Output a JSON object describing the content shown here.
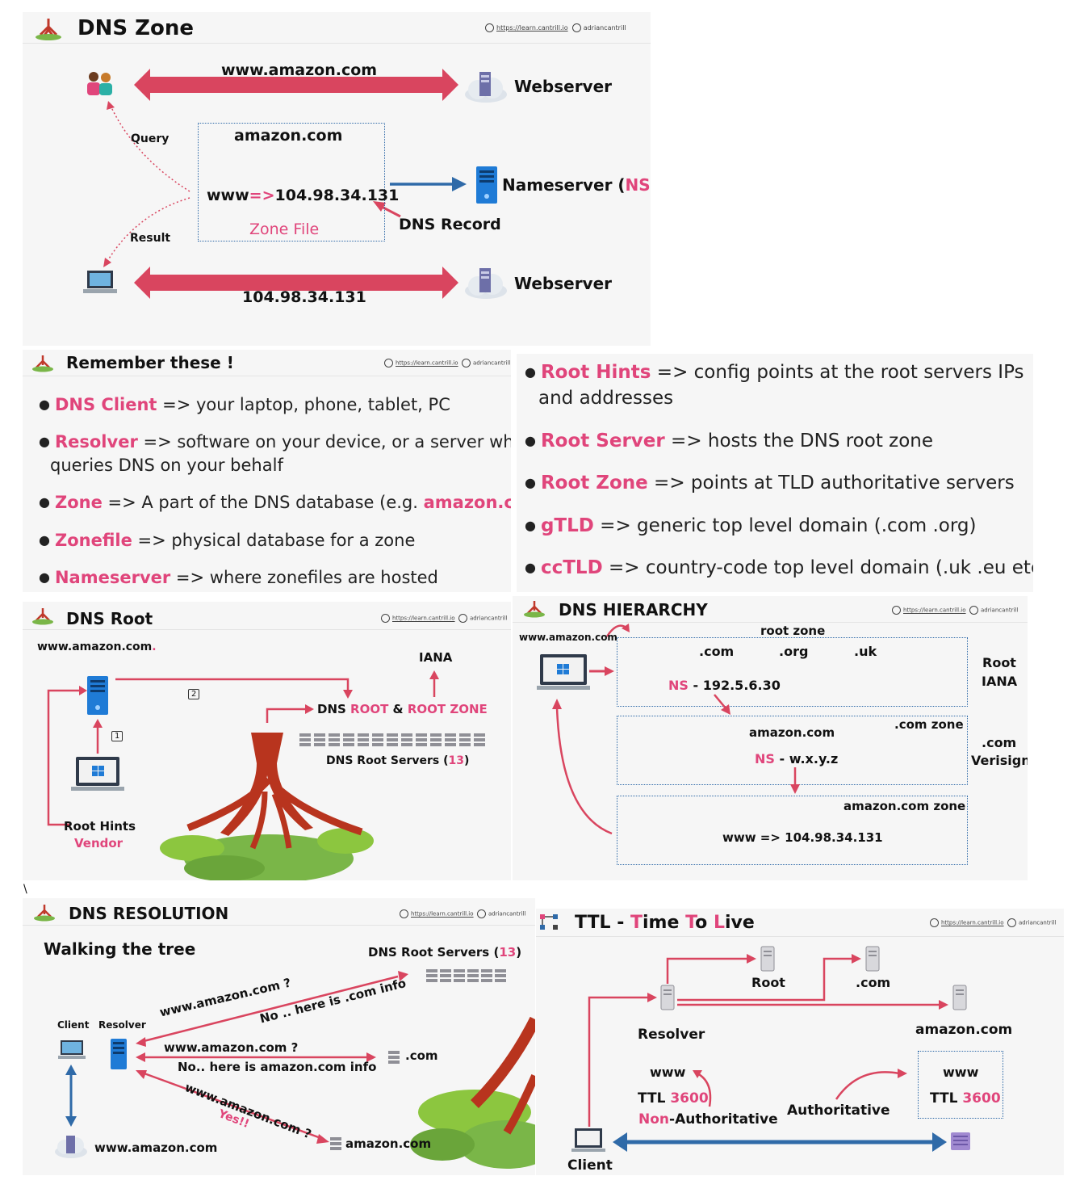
{
  "attribution": {
    "url": "https://learn.cantrill.io",
    "handle": "adriancantrill"
  },
  "dns_zone": {
    "title": "DNS Zone",
    "top_domain": "www.amazon.com",
    "webserver": "Webserver",
    "query": "Query",
    "result": "Result",
    "zone_name": "amazon.com",
    "record_pre": "www",
    "record_arrow": "=>",
    "record_ip": "104.98.34.131",
    "zone_file": "Zone File",
    "nameserver_pre": "Nameserver (",
    "nameserver_ns": "NS",
    "nameserver_post": ")",
    "dns_record": "DNS Record",
    "bottom_ip": "104.98.34.131",
    "webserver2": "Webserver"
  },
  "remember": {
    "title": "Remember these !",
    "left": [
      {
        "key": "DNS Client",
        "text": " => your laptop, phone, tablet, PC"
      },
      {
        "key": "Resolver",
        "text": " => software on your device, or a server which",
        "text2": "queries DNS on your behalf"
      },
      {
        "key": "Zone",
        "text": " => A part of the DNS database (e.g. ",
        "key2": "amazon.com",
        "tail": ")"
      },
      {
        "key": "Zonefile",
        "text": " => physical database for a zone"
      },
      {
        "key": "Nameserver",
        "text": " => where zonefiles are hosted"
      }
    ],
    "right": [
      {
        "key": "Root Hints",
        "text": " => config points at the root servers IPs",
        "text2": "and addresses"
      },
      {
        "key": "Root Server",
        "text": " => hosts the DNS root zone"
      },
      {
        "key": "Root Zone",
        "text": " => points at TLD authoritative servers"
      },
      {
        "key": "gTLD",
        "text": " => generic top level domain (.com .org)"
      },
      {
        "key": "ccTLD",
        "text": " => country-code top level domain (.uk .eu etc)"
      }
    ]
  },
  "dns_root": {
    "title": "DNS Root",
    "domain": "www.amazon.com",
    "domain_dot": ".",
    "iana": "IANA",
    "step2": "2",
    "step1": "1",
    "dns": "DNS ",
    "root": "ROOT",
    "amp": " & ",
    "root_zone": "ROOT ZONE",
    "servers_pre": "DNS Root Servers (",
    "servers_count": "13",
    "servers_post": ")",
    "root_hints": "Root Hints",
    "vendor": "Vendor"
  },
  "hierarchy": {
    "title": "DNS HIERARCHY",
    "domain": "www.amazon.com",
    "root_zone": "root zone",
    "tlds": [
      ".com",
      ".org",
      ".uk"
    ],
    "ns_label": "NS",
    "ns_root": " - 192.5.6.30",
    "root_label": "Root",
    "iana": "IANA",
    "com_zone": ".com zone",
    "amazon": "amazon.com",
    "ns_com": " - w.x.y.z",
    "com_label": ".com",
    "verisign": "Verisign",
    "amazon_zone": "amazon.com zone",
    "record": "www => 104.98.34.131"
  },
  "stray_char": "\\",
  "resolution": {
    "title": "DNS RESOLUTION",
    "subtitle": "Walking the tree",
    "servers_pre": "DNS Root Servers (",
    "servers_count": "13",
    "servers_post": ")",
    "client": "Client",
    "resolver": "Resolver",
    "q1": "www.amazon.com ?",
    "a1": "No .. here is .com info",
    "q2": "www.amazon.com ?",
    "com": ".com",
    "a2": "No.. here is amazon.com info",
    "q3": "www.amazon.com ?",
    "a3": "Yes!!",
    "amazon": "amazon.com",
    "bottom": "www.amazon.com"
  },
  "ttl": {
    "title_ttl": "TTL",
    "title_dash": " - ",
    "t1": "T",
    "t1r": "ime ",
    "t2": "T",
    "t2r": "o ",
    "t3": "L",
    "t3r": "ive",
    "root": "Root",
    "com": ".com",
    "resolver": "Resolver",
    "amazon": "amazon.com",
    "www": "www",
    "ttl": "TTL",
    "ttl_val": "3600",
    "non": "Non",
    "auth_tail": "-Authoritative",
    "authoritative": "Authoritative",
    "client": "Client"
  },
  "colors": {
    "pink": "#e0457b",
    "arrow_red": "#d9455f",
    "blue": "#2f6aa8",
    "tree": "#b8341e",
    "grass": "#7ab648"
  }
}
